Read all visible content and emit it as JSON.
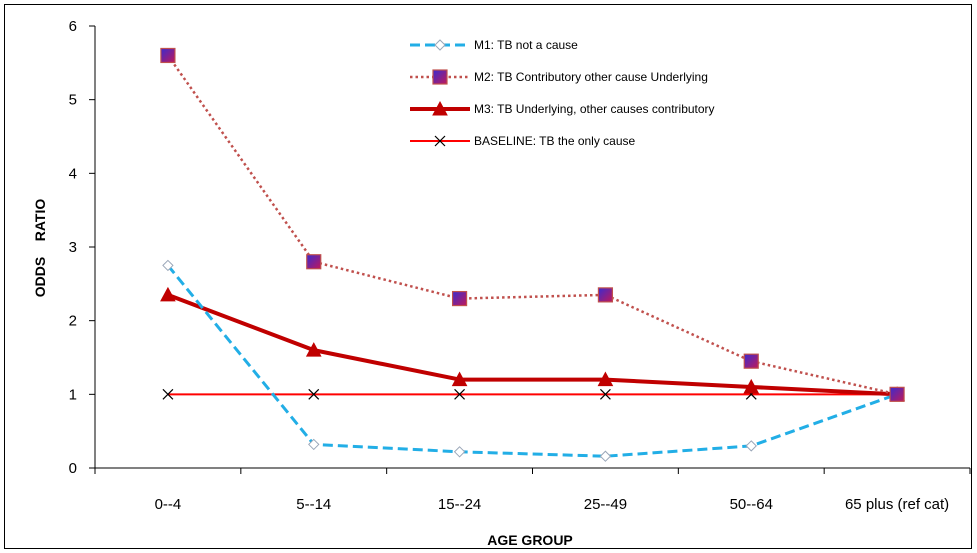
{
  "chart_data": {
    "type": "line",
    "title": "",
    "xlabel": "AGE GROUP",
    "ylabel": "ODDS    RATIO",
    "categories": [
      "0--4",
      "5--14",
      "15--24",
      "25--49",
      "50--64",
      "65 plus (ref cat)"
    ],
    "ylim": [
      0,
      6
    ],
    "yticks": [
      0,
      1,
      2,
      3,
      4,
      5,
      6
    ],
    "grid": false,
    "legend_position": "top-center",
    "series": [
      {
        "name": "M1: TB not a cause",
        "values": [
          2.75,
          0.32,
          0.22,
          0.16,
          0.3,
          1.0
        ],
        "color": "#22aee6",
        "line_style": "dashed",
        "marker": "diamond-open"
      },
      {
        "name": "M2: TB Contributory other cause Underlying",
        "values": [
          5.6,
          2.8,
          2.3,
          2.35,
          1.45,
          1.0
        ],
        "color": "#c0504d",
        "line_style": "dotted",
        "marker": "square-purple"
      },
      {
        "name": "M3: TB Underlying, other causes contributory",
        "values": [
          2.35,
          1.6,
          1.2,
          1.2,
          1.1,
          1.0
        ],
        "color": "#c00000",
        "line_style": "solid-thick",
        "marker": "triangle"
      },
      {
        "name": "BASELINE: TB the only cause",
        "values": [
          1,
          1,
          1,
          1,
          1,
          1
        ],
        "color": "#ff0000",
        "line_style": "solid",
        "marker": "x"
      }
    ]
  }
}
